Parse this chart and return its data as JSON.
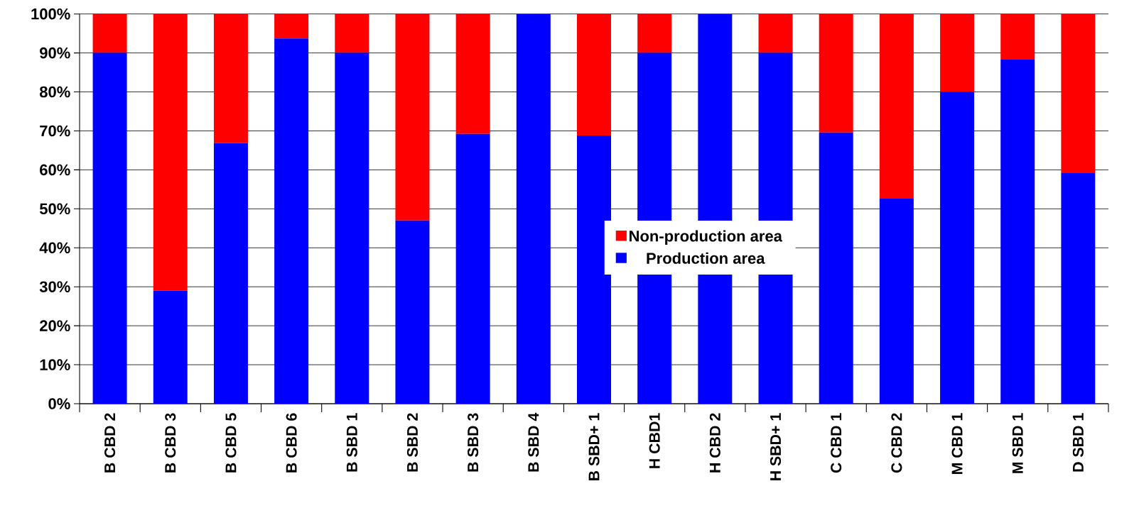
{
  "chart_data": {
    "type": "bar",
    "stacked": true,
    "categories": [
      "B CBD 2",
      "B CBD 3",
      "B CBD 5",
      "B CBD 6",
      "B SBD 1",
      "B SBD 2",
      "B SBD 3",
      "B SBD 4",
      "B SBD+ 1",
      "H CBD1",
      "H CBD 2",
      "H SBD+ 1",
      "C CBD 1",
      "C CBD 2",
      "M CBD 1",
      "M SBD 1",
      "D SBD 1"
    ],
    "series": [
      {
        "name": "Production area",
        "color": "#0000ff",
        "values": [
          90,
          29,
          66.9,
          93.7,
          90,
          47,
          69.2,
          100,
          68.8,
          90,
          100,
          90,
          69.6,
          52.6,
          80,
          88.3,
          59.3
        ]
      },
      {
        "name": "Non-production area",
        "color": "#ff0000",
        "values": [
          10,
          71,
          33.1,
          6.3,
          10,
          53,
          30.8,
          0,
          31.2,
          10,
          0,
          10,
          30.4,
          47.4,
          20,
          11.7,
          40.7
        ]
      }
    ],
    "ylim": [
      0,
      100
    ],
    "yticks": [
      {
        "value": 0,
        "label": "0%"
      },
      {
        "value": 10,
        "label": "10%"
      },
      {
        "value": 20,
        "label": "20%"
      },
      {
        "value": 30,
        "label": "30%"
      },
      {
        "value": 40,
        "label": "40%"
      },
      {
        "value": 50,
        "label": "50%"
      },
      {
        "value": 60,
        "label": "60%"
      },
      {
        "value": 70,
        "label": "70%"
      },
      {
        "value": 80,
        "label": "80%"
      },
      {
        "value": 90,
        "label": "90%"
      },
      {
        "value": 100,
        "label": "100%"
      }
    ],
    "grid": "y",
    "legend": "center"
  }
}
